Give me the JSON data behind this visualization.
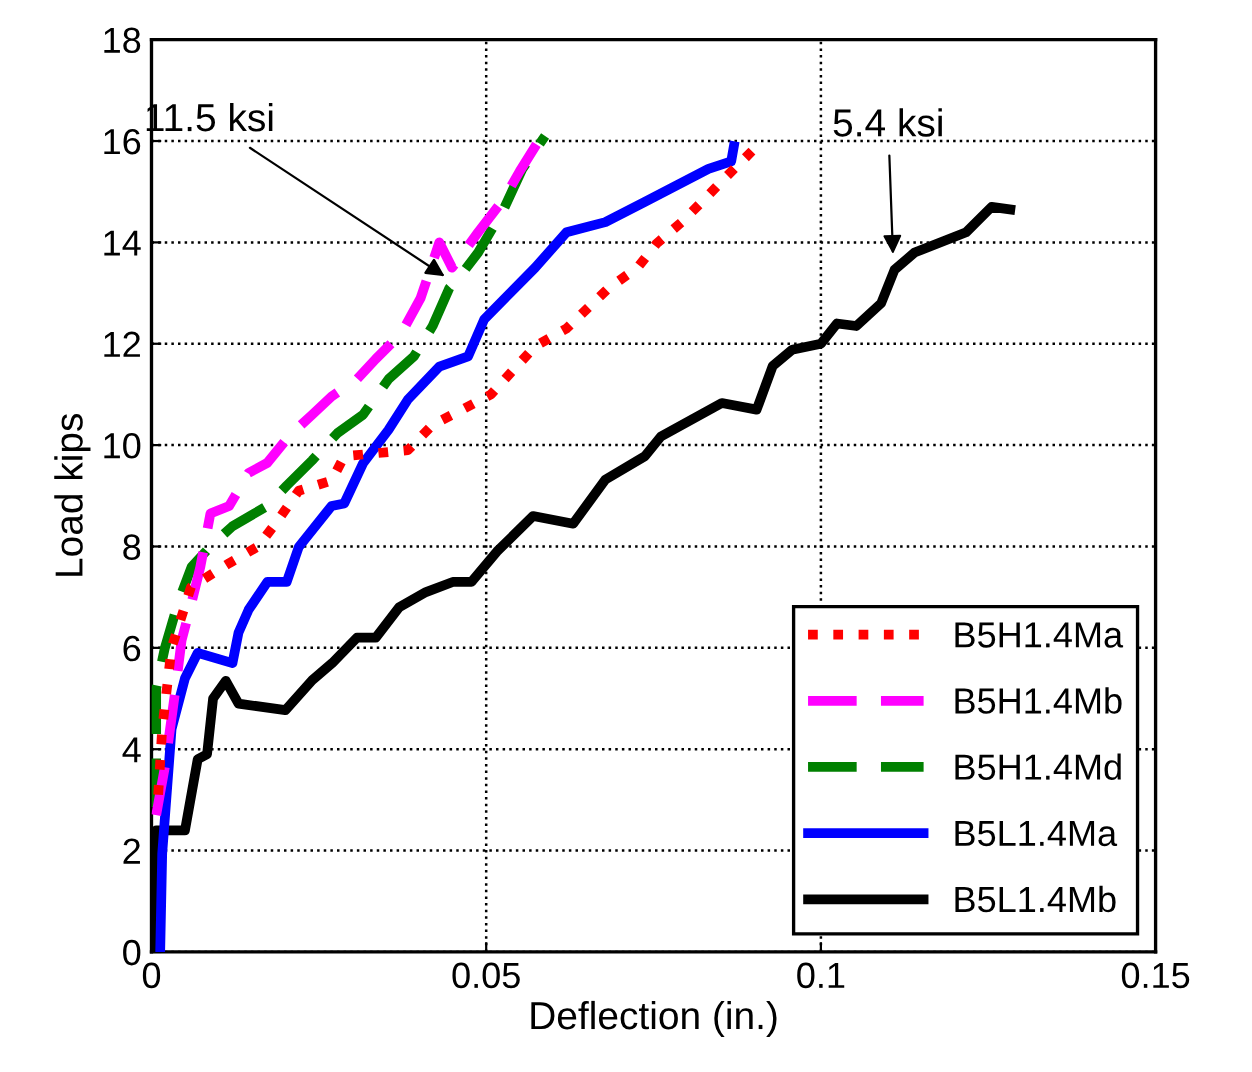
{
  "chart_data": {
    "type": "line",
    "xlabel": "Deflection (in.)",
    "ylabel": "Load kips",
    "xlim": [
      0,
      0.15
    ],
    "xticks": [
      0,
      0.05,
      0.1,
      0.15
    ],
    "ylim": [
      0,
      18
    ],
    "yticks": [
      0,
      2,
      4,
      6,
      8,
      10,
      12,
      14,
      16,
      18
    ],
    "grid": true,
    "legend": "bottom right",
    "marker": "none",
    "annotations": [
      {
        "text": "11.5 ksi",
        "x": 0.0445,
        "y": 13.27
      },
      {
        "text": "5.4 ksi",
        "x": 0.1108,
        "y": 13.66
      }
    ],
    "series": [
      {
        "name": "B5H1.4Ma",
        "color": "#ff0000",
        "line_style": "dotted",
        "x": [
          0.001,
          0.0016,
          0.003,
          0.0059,
          0.0116,
          0.0159,
          0.0188,
          0.022,
          0.0269,
          0.0288,
          0.0383,
          0.042,
          0.0464,
          0.0507,
          0.0573,
          0.062,
          0.0683,
          0.0726,
          0.0754,
          0.0792,
          0.0826,
          0.0859,
          0.0897
        ],
        "values": [
          3.1,
          4.4,
          6.0,
          7.2,
          7.67,
          8.0,
          8.5,
          9.1,
          9.3,
          9.78,
          9.9,
          10.4,
          10.7,
          11.0,
          11.95,
          12.3,
          13.1,
          13.5,
          13.97,
          14.4,
          14.85,
          15.3,
          15.8
        ]
      },
      {
        "name": "B5H1.4Mb",
        "color": "#ff00ff",
        "line_style": "dashed",
        "x": [
          0.0007,
          0.002,
          0.0035,
          0.0045,
          0.006,
          0.0073,
          0.0088,
          0.0116,
          0.0145,
          0.0173,
          0.0207,
          0.024,
          0.0269,
          0.0307,
          0.0335,
          0.0373,
          0.0402,
          0.043,
          0.0449,
          0.0488,
          0.0526,
          0.055,
          0.0583
        ],
        "values": [
          2.7,
          3.65,
          5.1,
          6.15,
          6.9,
          7.6,
          8.65,
          8.8,
          9.45,
          9.65,
          10.2,
          10.6,
          10.96,
          11.3,
          11.7,
          12.2,
          12.9,
          14.0,
          13.5,
          14.2,
          14.85,
          15.4,
          16.1
        ]
      },
      {
        "name": "B5H1.4Md",
        "color": "#008000",
        "line_style": "dashed",
        "x": [
          0.0007,
          0.0007,
          0.002,
          0.004,
          0.006,
          0.0088,
          0.0121,
          0.0173,
          0.0202,
          0.024,
          0.0278,
          0.0316,
          0.0354,
          0.0392,
          0.042,
          0.0445,
          0.0459,
          0.0488,
          0.0526,
          0.0554,
          0.0588
        ],
        "values": [
          2.86,
          5.2,
          6.0,
          6.9,
          7.6,
          8.0,
          8.4,
          8.8,
          9.2,
          9.7,
          10.24,
          10.6,
          11.3,
          11.75,
          12.35,
          13.1,
          13.3,
          13.8,
          14.65,
          15.45,
          16.1
        ]
      },
      {
        "name": "B5L1.4Ma",
        "color": "#0000ff",
        "line_style": "solid",
        "x": [
          0.0013,
          0.0016,
          0.003,
          0.005,
          0.0069,
          0.0121,
          0.013,
          0.0145,
          0.0173,
          0.0202,
          0.022,
          0.0269,
          0.0288,
          0.0316,
          0.0354,
          0.0383,
          0.043,
          0.0473,
          0.0497,
          0.0526,
          0.0573,
          0.062,
          0.0678,
          0.0737,
          0.0832,
          0.0866,
          0.087
        ],
        "values": [
          0,
          1.94,
          4.4,
          5.4,
          5.9,
          5.7,
          6.3,
          6.75,
          7.3,
          7.3,
          7.99,
          8.8,
          8.85,
          9.64,
          10.3,
          10.9,
          11.55,
          11.75,
          12.48,
          12.87,
          13.5,
          14.2,
          14.4,
          14.8,
          15.45,
          15.6,
          15.9
        ]
      },
      {
        "name": "B5L1.4Mb",
        "color": "#000000",
        "line_style": "solid",
        "x": [
          0,
          0.0007,
          0.005,
          0.0069,
          0.0083,
          0.0092,
          0.0111,
          0.013,
          0.02,
          0.024,
          0.027,
          0.0307,
          0.0335,
          0.037,
          0.041,
          0.045,
          0.0478,
          0.0516,
          0.057,
          0.063,
          0.0678,
          0.0737,
          0.0761,
          0.0852,
          0.0904,
          0.0928,
          0.0957,
          0.1,
          0.1024,
          0.1053,
          0.109,
          0.111,
          0.114,
          0.1217,
          0.1255,
          0.1283
        ],
        "values": [
          0,
          2.4,
          2.4,
          3.8,
          3.9,
          5.0,
          5.35,
          4.9,
          4.77,
          5.36,
          5.7,
          6.2,
          6.2,
          6.8,
          7.1,
          7.3,
          7.3,
          7.9,
          8.6,
          8.45,
          9.32,
          9.78,
          10.17,
          10.83,
          10.7,
          11.56,
          11.88,
          12.0,
          12.4,
          12.35,
          12.8,
          13.46,
          13.8,
          14.2,
          14.7,
          14.65
        ]
      }
    ]
  }
}
